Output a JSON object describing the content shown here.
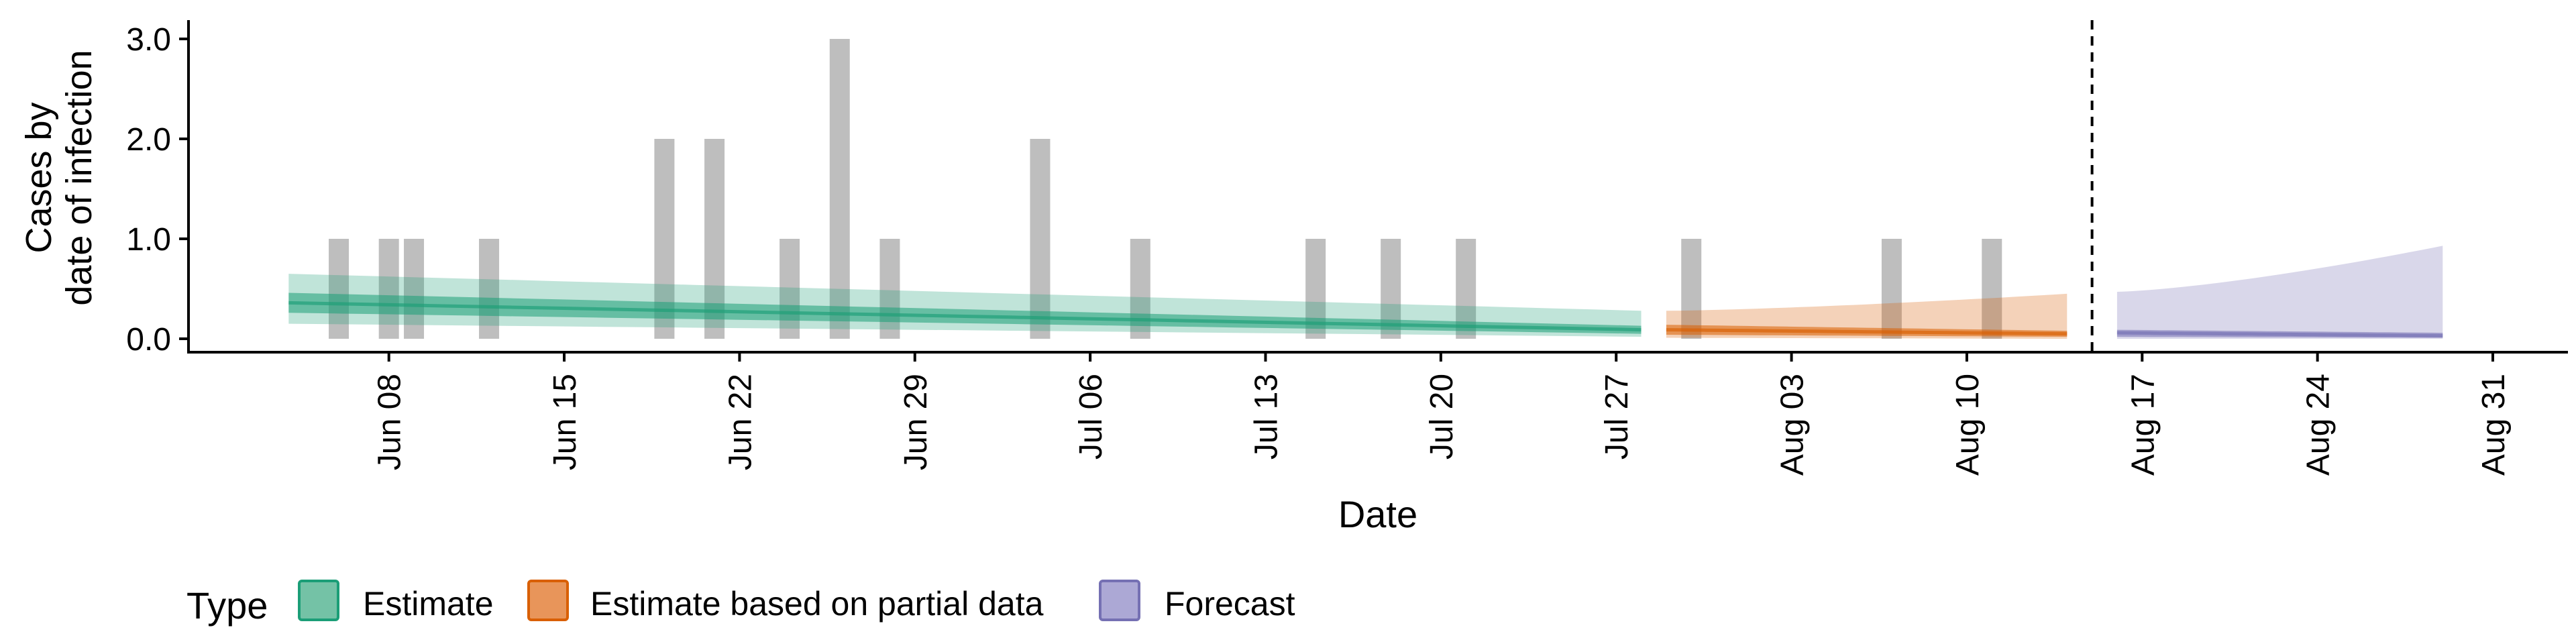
{
  "chart_data": {
    "type": "bar",
    "title": "",
    "xlabel": "Date",
    "ylabel_lines": [
      "Cases by",
      "date of infection"
    ],
    "ylim": [
      0,
      3.0
    ],
    "yticks": [
      0.0,
      1.0,
      2.0,
      3.0
    ],
    "ytick_labels": [
      "0.0",
      "1.0",
      "2.0",
      "3.0"
    ],
    "x_start_date": "2021-05-31",
    "x_end_date": "2021-09-03",
    "x_ticks": [
      {
        "date": "2021-06-08",
        "label": "Jun 08"
      },
      {
        "date": "2021-06-15",
        "label": "Jun 15"
      },
      {
        "date": "2021-06-22",
        "label": "Jun 22"
      },
      {
        "date": "2021-06-29",
        "label": "Jun 29"
      },
      {
        "date": "2021-07-06",
        "label": "Jul 06"
      },
      {
        "date": "2021-07-13",
        "label": "Jul 13"
      },
      {
        "date": "2021-07-20",
        "label": "Jul 20"
      },
      {
        "date": "2021-07-27",
        "label": "Jul 27"
      },
      {
        "date": "2021-08-03",
        "label": "Aug 03"
      },
      {
        "date": "2021-08-10",
        "label": "Aug 10"
      },
      {
        "date": "2021-08-17",
        "label": "Aug 17"
      },
      {
        "date": "2021-08-24",
        "label": "Aug 24"
      },
      {
        "date": "2021-08-31",
        "label": "Aug 31"
      }
    ],
    "reported_cases": {
      "color": "#bebebe",
      "points": [
        {
          "date": "2021-06-06",
          "value": 1
        },
        {
          "date": "2021-06-08",
          "value": 1
        },
        {
          "date": "2021-06-09",
          "value": 1
        },
        {
          "date": "2021-06-12",
          "value": 1
        },
        {
          "date": "2021-06-19",
          "value": 2
        },
        {
          "date": "2021-06-21",
          "value": 2
        },
        {
          "date": "2021-06-24",
          "value": 1
        },
        {
          "date": "2021-06-26",
          "value": 3
        },
        {
          "date": "2021-06-28",
          "value": 1
        },
        {
          "date": "2021-07-04",
          "value": 2
        },
        {
          "date": "2021-07-08",
          "value": 1
        },
        {
          "date": "2021-07-15",
          "value": 1
        },
        {
          "date": "2021-07-18",
          "value": 1
        },
        {
          "date": "2021-07-21",
          "value": 1
        },
        {
          "date": "2021-07-30",
          "value": 1
        },
        {
          "date": "2021-08-07",
          "value": 1
        },
        {
          "date": "2021-08-11",
          "value": 1
        }
      ]
    },
    "forecast_cutoff_date": "2021-08-15",
    "series": [
      {
        "name": "Estimate",
        "color": "#1b9e77",
        "start_date": "2021-06-04",
        "end_date": "2021-07-28",
        "median": [
          0.36,
          0.09
        ],
        "inner": [
          [
            0.26,
            0.46
          ],
          [
            0.05,
            0.13
          ]
        ],
        "outer": [
          [
            0.15,
            0.65
          ],
          [
            0.02,
            0.28
          ]
        ]
      },
      {
        "name": "Estimate based on partial data",
        "color": "#d95f02",
        "start_date": "2021-07-29",
        "end_date": "2021-08-14",
        "median": [
          0.09,
          0.05
        ],
        "inner": [
          [
            0.04,
            0.14
          ],
          [
            0.02,
            0.08
          ]
        ],
        "outer": [
          [
            0.01,
            0.28
          ],
          [
            0.0,
            0.45
          ]
        ]
      },
      {
        "name": "Forecast",
        "color": "#7570b3",
        "start_date": "2021-08-16",
        "end_date": "2021-08-29",
        "median": [
          0.06,
          0.03
        ],
        "inner": [
          [
            0.02,
            0.09
          ],
          [
            0.01,
            0.06
          ]
        ],
        "outer": [
          [
            0.0,
            0.47
          ],
          [
            0.0,
            0.93
          ]
        ]
      }
    ],
    "legend": {
      "title": "Type",
      "position": "bottom-left",
      "items": [
        {
          "label": "Estimate",
          "fill": "#74c2a6",
          "border": "#1b9e77"
        },
        {
          "label": "Estimate based on partial data",
          "fill": "#e8955a",
          "border": "#d95f02"
        },
        {
          "label": "Forecast",
          "fill": "#aca8d5",
          "border": "#7570b3"
        }
      ]
    }
  }
}
